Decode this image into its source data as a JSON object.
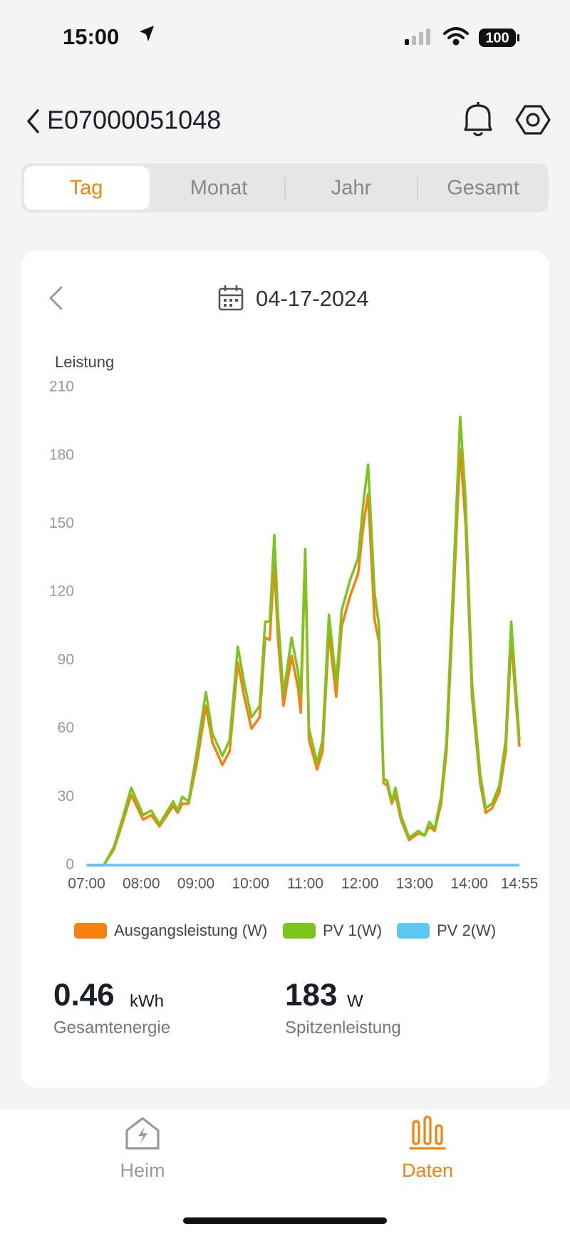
{
  "status_bar": {
    "time": "15:00",
    "battery": "100"
  },
  "header": {
    "title": "E07000051048"
  },
  "tabs": [
    "Tag",
    "Monat",
    "Jahr",
    "Gesamt"
  ],
  "date": "04-17-2024",
  "chart_data": {
    "type": "line",
    "y_label": "Leistung",
    "x": [
      "07:00",
      "07:19",
      "07:30",
      "07:39",
      "07:49",
      "08:02",
      "08:11",
      "08:20",
      "08:35",
      "08:40",
      "08:45",
      "08:52",
      "09:01",
      "09:11",
      "09:18",
      "09:29",
      "09:37",
      "09:46",
      "09:53",
      "10:01",
      "10:10",
      "10:16",
      "10:21",
      "10:26",
      "10:30",
      "10:36",
      "10:45",
      "10:52",
      "10:55",
      "11:00",
      "11:04",
      "11:13",
      "11:19",
      "11:26",
      "11:34",
      "11:40",
      "11:49",
      "11:58",
      "12:04",
      "12:09",
      "12:16",
      "12:21",
      "12:26",
      "12:30",
      "12:35",
      "12:39",
      "12:45",
      "12:54",
      "13:04",
      "13:11",
      "13:16",
      "13:22",
      "13:29",
      "13:35",
      "13:43",
      "13:50",
      "13:56",
      "14:03",
      "14:12",
      "14:18",
      "14:25",
      "14:33",
      "14:40",
      "14:46",
      "14:55"
    ],
    "xlim": [
      "07:00",
      "14:55"
    ],
    "xticks": [
      "07:00",
      "08:00",
      "09:00",
      "10:00",
      "11:00",
      "12:00",
      "13:00",
      "14:00",
      "14:55"
    ],
    "ylim": [
      0,
      210
    ],
    "yticks": [
      0,
      30,
      60,
      90,
      120,
      150,
      180,
      210
    ],
    "series": [
      {
        "name": "Ausgangsleistung (W)",
        "color": "#f5820c",
        "values": [
          0,
          0,
          7,
          18,
          31,
          20,
          22,
          17,
          26,
          23,
          27,
          27,
          45,
          70,
          54,
          44,
          50,
          89,
          74,
          60,
          65,
          100,
          99,
          133,
          100,
          70,
          92,
          78,
          67,
          136,
          55,
          42,
          50,
          102,
          74,
          105,
          118,
          128,
          150,
          163,
          108,
          98,
          36,
          35,
          27,
          31,
          20,
          11,
          14,
          13,
          17,
          15,
          27,
          50,
          120,
          183,
          150,
          74,
          36,
          23,
          25,
          32,
          50,
          99,
          52
        ]
      },
      {
        "name": "PV 1(W)",
        "color": "#7ec41e",
        "values": [
          0,
          0,
          8,
          20,
          34,
          22,
          24,
          18,
          28,
          24,
          30,
          28,
          50,
          76,
          58,
          48,
          55,
          96,
          80,
          65,
          70,
          107,
          107,
          145,
          110,
          75,
          100,
          85,
          75,
          139,
          60,
          45,
          55,
          110,
          80,
          112,
          125,
          135,
          160,
          176,
          120,
          105,
          38,
          37,
          28,
          34,
          22,
          12,
          15,
          13,
          19,
          16,
          30,
          55,
          130,
          197,
          160,
          80,
          40,
          25,
          27,
          35,
          55,
          107,
          55
        ]
      },
      {
        "name": "PV 2(W)",
        "color": "#5bc8f5",
        "values": [
          0,
          0,
          0,
          0,
          0,
          0,
          0,
          0,
          0,
          0,
          0,
          0,
          0,
          0,
          0,
          0,
          0,
          0,
          0,
          0,
          0,
          0,
          0,
          0,
          0,
          0,
          0,
          0,
          0,
          0,
          0,
          0,
          0,
          0,
          0,
          0,
          0,
          0,
          0,
          0,
          0,
          0,
          0,
          0,
          0,
          0,
          0,
          0,
          0,
          0,
          0,
          0,
          0,
          0,
          0,
          0,
          0,
          0,
          0,
          0,
          0,
          0,
          0,
          0,
          0
        ]
      }
    ]
  },
  "stats": [
    {
      "value": "0.46",
      "unit": "kWh",
      "label": "Gesamtenergie"
    },
    {
      "value": "183",
      "unit": "W",
      "label": "Spitzenleistung"
    }
  ],
  "nav": [
    "Heim",
    "Daten"
  ]
}
